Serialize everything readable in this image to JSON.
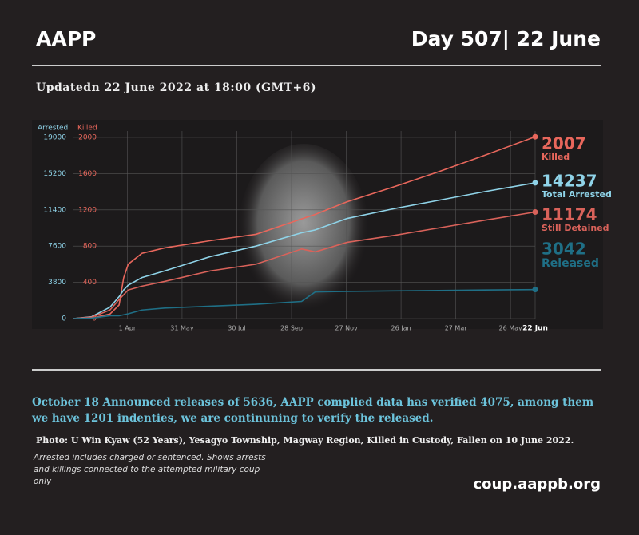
{
  "header": {
    "title": "AAPP",
    "day": "Day 507| 22 June",
    "updated": "Updatedn 22 June 2022 at 18:00 (GMT+6)"
  },
  "chart_data": {
    "type": "line",
    "y_label": "Arrested",
    "y2_label": "Killed",
    "x": [
      0,
      20,
      40,
      50,
      55,
      60,
      75,
      100,
      150,
      200,
      250,
      265,
      300,
      350,
      400,
      450,
      506
    ],
    "xlim": [
      0,
      506
    ],
    "xticks": [
      {
        "value": 59,
        "label": "1 Apr"
      },
      {
        "value": 119,
        "label": "31 May"
      },
      {
        "value": 179,
        "label": "30 Jul"
      },
      {
        "value": 239,
        "label": "28 Sep"
      },
      {
        "value": 299,
        "label": "27 Nov"
      },
      {
        "value": 359,
        "label": "26 Jan"
      },
      {
        "value": 419,
        "label": "27 Mar"
      },
      {
        "value": 479,
        "label": "26 May"
      },
      {
        "value": 506,
        "label": "22 Jun"
      }
    ],
    "ylim": [
      0,
      19000
    ],
    "yticks": [
      0,
      3800,
      7600,
      11400,
      15200,
      19000
    ],
    "y2lim": [
      0,
      2000
    ],
    "y2ticks": [
      0,
      400,
      800,
      1200,
      1600,
      2000
    ],
    "grid": true,
    "series": [
      {
        "name": "Killed",
        "color": "#e8675c",
        "axis": "y2",
        "values": [
          0,
          5,
          50,
          150,
          450,
          600,
          720,
          780,
          860,
          930,
          1100,
          1150,
          1290,
          1450,
          1620,
          1800,
          2007
        ]
      },
      {
        "name": "Total Arrested",
        "color": "#8fd3e8",
        "values": [
          0,
          200,
          1200,
          2300,
          3000,
          3500,
          4300,
          5000,
          6500,
          7600,
          9000,
          9300,
          10500,
          11500,
          12400,
          13300,
          14237
        ]
      },
      {
        "name": "Still Detained",
        "color": "#d9625a",
        "values": [
          0,
          150,
          900,
          2000,
          2500,
          3000,
          3400,
          3900,
          5000,
          5700,
          7300,
          7000,
          8000,
          8700,
          9500,
          10300,
          11174
        ]
      },
      {
        "name": "Released",
        "color": "#1f6f86",
        "values": [
          0,
          50,
          300,
          300,
          400,
          500,
          900,
          1100,
          1300,
          1500,
          1800,
          2800,
          2850,
          2900,
          2950,
          3000,
          3042
        ]
      }
    ]
  },
  "body": {
    "announcement": "October 18 Announced releases of 5636, AAPP complied data has verified 4075, among them we have 1201 indenties, we are continuning to verify the released.",
    "photo_caption": "Photo:  U Win Kyaw (52 Years), Yesagyo Township, Magway Region, Killed in Custody, Fallen on 10 June 2022.",
    "note": "Arrested includes charged or sentenced. Shows arrests and killings connected to the attempted military coup only",
    "url": "coup.aappb.org"
  }
}
